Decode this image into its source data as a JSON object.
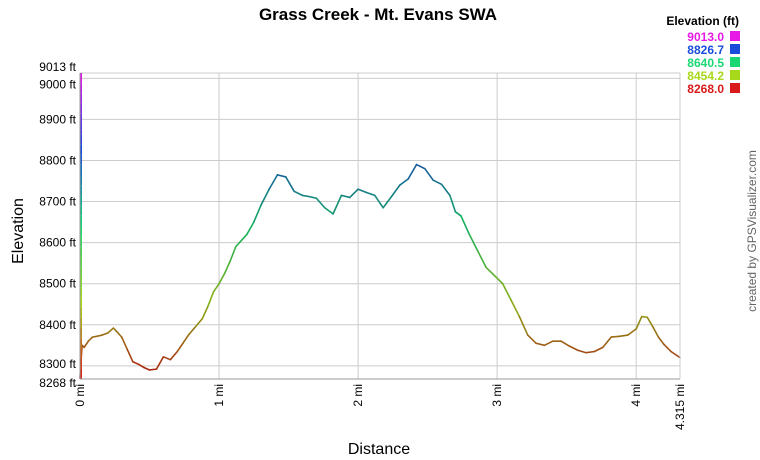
{
  "chart_data": {
    "type": "line",
    "title": "Grass Creek - Mt. Evans SWA",
    "xlabel": "Distance",
    "ylabel": "Elevation",
    "credit": "created by GPSVisualizer.com",
    "xlim": [
      0,
      4.315
    ],
    "ylim": [
      8268,
      9013
    ],
    "x_ticks": [
      {
        "value": 0,
        "label": "0 mi"
      },
      {
        "value": 1,
        "label": "1 mi"
      },
      {
        "value": 2,
        "label": "2 mi"
      },
      {
        "value": 3,
        "label": "3 mi"
      },
      {
        "value": 4,
        "label": "4 mi"
      },
      {
        "value": 4.315,
        "label": "4.315 mi"
      }
    ],
    "y_ticks": [
      {
        "value": 8268,
        "label": "8268 ft"
      },
      {
        "value": 8300,
        "label": "8300 ft"
      },
      {
        "value": 8400,
        "label": "8400 ft"
      },
      {
        "value": 8500,
        "label": "8500 ft"
      },
      {
        "value": 8600,
        "label": "8600 ft"
      },
      {
        "value": 8700,
        "label": "8700 ft"
      },
      {
        "value": 8800,
        "label": "8800 ft"
      },
      {
        "value": 8900,
        "label": "8900 ft"
      },
      {
        "value": 9000,
        "label": "9000 ft"
      },
      {
        "value": 9013,
        "label": "9013 ft"
      }
    ],
    "grid": true,
    "legend": {
      "title": "Elevation (ft)",
      "placement": "top-right",
      "entries": [
        {
          "label": "9013.0",
          "color": "#e619e6"
        },
        {
          "label": "8826.7",
          "color": "#1a4cdb"
        },
        {
          "label": "8640.5",
          "color": "#19d873"
        },
        {
          "label": "8454.2",
          "color": "#a8d81a"
        },
        {
          "label": "8268.0",
          "color": "#d81a1a"
        }
      ]
    },
    "x": [
      0,
      0.005,
      0.015,
      0.03,
      0.06,
      0.09,
      0.12,
      0.16,
      0.2,
      0.24,
      0.26,
      0.3,
      0.34,
      0.38,
      0.42,
      0.46,
      0.5,
      0.55,
      0.6,
      0.65,
      0.7,
      0.74,
      0.78,
      0.83,
      0.88,
      0.92,
      0.96,
      1.0,
      1.04,
      1.08,
      1.12,
      1.16,
      1.2,
      1.25,
      1.3,
      1.36,
      1.42,
      1.48,
      1.54,
      1.6,
      1.65,
      1.7,
      1.76,
      1.82,
      1.88,
      1.94,
      2.0,
      2.06,
      2.12,
      2.18,
      2.24,
      2.3,
      2.36,
      2.42,
      2.48,
      2.54,
      2.6,
      2.66,
      2.7,
      2.74,
      2.8,
      2.86,
      2.92,
      2.98,
      3.04,
      3.1,
      3.16,
      3.22,
      3.28,
      3.34,
      3.4,
      3.46,
      3.52,
      3.58,
      3.64,
      3.7,
      3.76,
      3.82,
      3.88,
      3.94,
      4.0,
      4.04,
      4.08,
      4.12,
      4.16,
      4.2,
      4.25,
      4.315
    ],
    "y": [
      8270,
      8300,
      8350,
      8345,
      8360,
      8370,
      8372,
      8375,
      8380,
      8392,
      8385,
      8370,
      8340,
      8310,
      8304,
      8296,
      8290,
      8292,
      8322,
      8315,
      8335,
      8355,
      8375,
      8395,
      8415,
      8445,
      8480,
      8500,
      8525,
      8555,
      8590,
      8605,
      8620,
      8650,
      8690,
      8730,
      8765,
      8760,
      8725,
      8715,
      8712,
      8708,
      8685,
      8670,
      8715,
      8710,
      8730,
      8722,
      8715,
      8685,
      8712,
      8740,
      8755,
      8790,
      8780,
      8752,
      8742,
      8715,
      8675,
      8665,
      8620,
      8580,
      8540,
      8520,
      8500,
      8460,
      8420,
      8375,
      8355,
      8350,
      8360,
      8360,
      8348,
      8338,
      8332,
      8335,
      8345,
      8370,
      8372,
      8375,
      8390,
      8420,
      8418,
      8395,
      8370,
      8352,
      8335,
      8320
    ]
  }
}
